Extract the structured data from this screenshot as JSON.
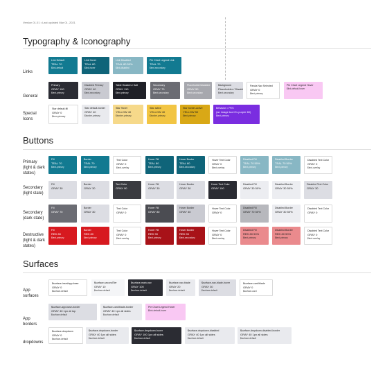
{
  "version": "Version 01.01 • Last updated Mar 01, 2021",
  "sections": {
    "typography": "Typography & Iconography",
    "buttons": "Buttons",
    "surfaces": "Surfaces"
  },
  "links": {
    "label": "Links",
    "swatches": [
      {
        "name": "Link Default",
        "value": "TEAL 70",
        "sub": "$link-default"
      },
      {
        "name": "Link Hover",
        "value": "TEAL 80",
        "sub": "$link-hover"
      },
      {
        "name": "Link Disabled",
        "value": "TEAL 80 50%",
        "sub": "$link-disabled"
      },
      {
        "name": "Pie Chart Legend Link",
        "value": "TEAL 70",
        "sub": "$text-secondary"
      }
    ]
  },
  "general": {
    "label": "General",
    "swatches": [
      {
        "name": "Primary",
        "value": "GRAY 100",
        "sub": "$text-primary"
      },
      {
        "name": "Disabled Primary",
        "value": "GRAY 40",
        "sub": "$text-secondary"
      },
      {
        "name": "Table Headers / Italt",
        "value": "GRAY 110",
        "sub": "$text-primary"
      },
      {
        "name": "Secondary",
        "value": "GRAY 70",
        "sub": "$text-secondary"
      },
      {
        "name": "Placeholder/disabled",
        "value": "GRAY 50",
        "sub": "$text-secondary"
      },
      {
        "name": "Background",
        "value": "Placeholder / Disabled",
        "sub": "$text-secondary"
      },
      {
        "name": "Panda Nav Selected",
        "value": "GRAY 0",
        "sub": "$text-primary"
      },
      {
        "name": "Pie Chart Legend Hover",
        "value": "",
        "sub": "$link-default-hover"
      }
    ]
  },
  "special": {
    "label": "Special Icons",
    "swatches": [
      {
        "name": "Star default-fill",
        "value": "GRAY 0",
        "sub": "$icon-primary"
      },
      {
        "name": "Star default-border",
        "value": "GRAY 40",
        "sub": "$border-primary"
      },
      {
        "name": "Star Hover",
        "value": "YELLOW 40",
        "sub": "$border-primary"
      },
      {
        "name": "Star active",
        "value": "YELLOW 40",
        "sub": "$border-primary"
      },
      {
        "name": "Star border-active",
        "value": "YELLOW 50",
        "sub": "$text-primary"
      },
      {
        "name": "Behavior = PES",
        "value": "(an image tool it's purple 60)",
        "sub": "$text-primary"
      }
    ]
  },
  "buttons": {
    "rows": [
      {
        "label": "Primary (light & dark states)",
        "swatches": [
          {
            "name": "Fill",
            "value": "TEAL 70",
            "sub": "$text-primary"
          },
          {
            "name": "Border",
            "value": "TEAL 70",
            "sub": "$text-primary"
          },
          {
            "name": "Text Color",
            "value": "GRAY 0",
            "sub": "$text-overlay"
          },
          {
            "name": "Hover Fill",
            "value": "TEAL 80",
            "sub": "$text-primary"
          },
          {
            "name": "Hover Border",
            "value": "TEAL 80",
            "sub": "$text-secondary"
          },
          {
            "name": "Hover Text Color",
            "value": "GRAY 0",
            "sub": "$text-overlay"
          },
          {
            "name": "Disabled Fill",
            "value": "TEAL 70 50%",
            "sub": "$text-primary"
          },
          {
            "name": "Disabled Border",
            "value": "TEAL 70 50%",
            "sub": "$text-primary"
          },
          {
            "name": "Disabled Text Color",
            "value": "GRAY 0",
            "sub": "$text-overlay"
          }
        ]
      },
      {
        "label": "Secondary (light state)",
        "swatches": [
          {
            "name": "Fill",
            "value": "GRAY 30",
            "sub": ""
          },
          {
            "name": "Border",
            "value": "GRAY 30",
            "sub": ""
          },
          {
            "name": "Text Color",
            "value": "GRAY 90",
            "sub": ""
          },
          {
            "name": "Hover Fill",
            "value": "GRAY 30",
            "sub": ""
          },
          {
            "name": "Hover Border",
            "value": "GRAY 30",
            "sub": ""
          },
          {
            "name": "Hover Text Color",
            "value": "GRAY 100",
            "sub": ""
          },
          {
            "name": "Disabled Fill",
            "value": "GRAY 30 50%",
            "sub": ""
          },
          {
            "name": "Disabled Border",
            "value": "GRAY 30 50%",
            "sub": ""
          },
          {
            "name": "Disabled Text Color",
            "value": "GRAY 30",
            "sub": ""
          }
        ]
      },
      {
        "label": "Secondary (dark state)",
        "swatches": [
          {
            "name": "Fill",
            "value": "GRAY 70",
            "sub": ""
          },
          {
            "name": "Border",
            "value": "GRAY 30",
            "sub": ""
          },
          {
            "name": "Text Color",
            "value": "GRAY 0",
            "sub": ""
          },
          {
            "name": "Hover Fill",
            "value": "GRAY 80",
            "sub": ""
          },
          {
            "name": "Hover Border",
            "value": "GRAY 40",
            "sub": ""
          },
          {
            "name": "Hover Text Color",
            "value": "GRAY 0",
            "sub": ""
          },
          {
            "name": "Disabled Fill",
            "value": "GRAY 70 50%",
            "sub": ""
          },
          {
            "name": "Disabled Border",
            "value": "GRAY 30 50%",
            "sub": ""
          },
          {
            "name": "Disabled Text Color",
            "value": "GRAY 0",
            "sub": ""
          }
        ]
      },
      {
        "label": "Destructive (light & dark states)",
        "swatches": [
          {
            "name": "Fill",
            "value": "RED 80",
            "sub": "$text-primary"
          },
          {
            "name": "Border",
            "value": "RED 80",
            "sub": "$text-primary"
          },
          {
            "name": "Text Color",
            "value": "GRAY 0",
            "sub": "$text-overlay"
          },
          {
            "name": "Hover Fill",
            "value": "RED 90",
            "sub": "$text-primary"
          },
          {
            "name": "Hover Border",
            "value": "RED 90",
            "sub": "$text-secondary"
          },
          {
            "name": "Hover Text Color",
            "value": "GRAY 0",
            "sub": "$text-overlay"
          },
          {
            "name": "Disabled Fill",
            "value": "RED 80 50%",
            "sub": "$text-primary"
          },
          {
            "name": "Disabled Border",
            "value": "RED 80 50%",
            "sub": "$text-primary"
          },
          {
            "name": "Disabled Text Color",
            "value": "GRAY 0",
            "sub": "$text-overlay"
          }
        ]
      }
    ]
  },
  "surfaces": {
    "rows": [
      {
        "label": "App surfaces",
        "swatches": [
          {
            "name": "$surface-inset/app-base",
            "value": "GRAY 0",
            "sub": "$surface-default"
          },
          {
            "name": "$surface-secondTier",
            "value": "GRAY 10",
            "sub": "$surface-default"
          },
          {
            "name": "$surface-main-nav",
            "value": "GRAY 100",
            "sub": "$surface-default"
          },
          {
            "name": "$surface-nav-blade",
            "value": "GRAY 20",
            "sub": "$surface-default"
          },
          {
            "name": "$surface-nav-blade-hover",
            "value": "GRAY 30",
            "sub": "$surface-default"
          },
          {
            "name": "$surface-card/blade",
            "value": "GRAY 0",
            "sub": "$surface-card"
          }
        ]
      },
      {
        "label": "App borders",
        "swatches": [
          {
            "name": "$surface-app-base-border",
            "value": "GRAY 40 1px at top",
            "sub": "$surface-default"
          },
          {
            "name": "$surface-card/blade-border",
            "value": "GRAY 40 1px all sides",
            "sub": "$surface-default"
          },
          {
            "name": "Pie Chart Legend Hover",
            "value": "",
            "sub": "$link-default-hover"
          }
        ]
      },
      {
        "label": "dropdowns",
        "swatches": [
          {
            "name": "$surface-dropdown",
            "value": "GRAY 0",
            "sub": "$surface-default"
          },
          {
            "name": "$surface-dropdown-border",
            "value": "GRAY 40 1px all sides",
            "sub": "$surface-default"
          },
          {
            "name": "$surface-dropdown-hover",
            "value": "GRAY 100 1px all sides",
            "sub": "$surface-default"
          },
          {
            "name": "$surface-dropdown-disabled",
            "value": "GRAY 40 1px all sides",
            "sub": "$surface-default"
          },
          {
            "name": "$surface-dropdown-disabled-border",
            "value": "GRAY 40 1px all sides",
            "sub": "$surface-default"
          }
        ]
      }
    ]
  },
  "colors": {
    "teal70": "#127a91",
    "teal80": "#0f6479",
    "teal80_50": "#88b7c4",
    "gray0": "#ffffff",
    "gray10": "#f4f5f7",
    "gray20": "#e9eaee",
    "gray30": "#dcdde3",
    "gray40": "#c9cad1",
    "gray50": "#a7a8ae",
    "gray70": "#6b6c73",
    "gray80": "#4b4c52",
    "gray90": "#3a3b40",
    "gray100": "#2b2c33",
    "gray110": "#1f2027",
    "yellowLight": "#f6d98a",
    "yellow40": "#f2c543",
    "yellow50": "#d9a816",
    "purple60": "#7a2de0",
    "pink": "#f9c8f3",
    "red80": "#d7191f",
    "red90": "#a81218",
    "red80_50": "#ea8a8d"
  }
}
